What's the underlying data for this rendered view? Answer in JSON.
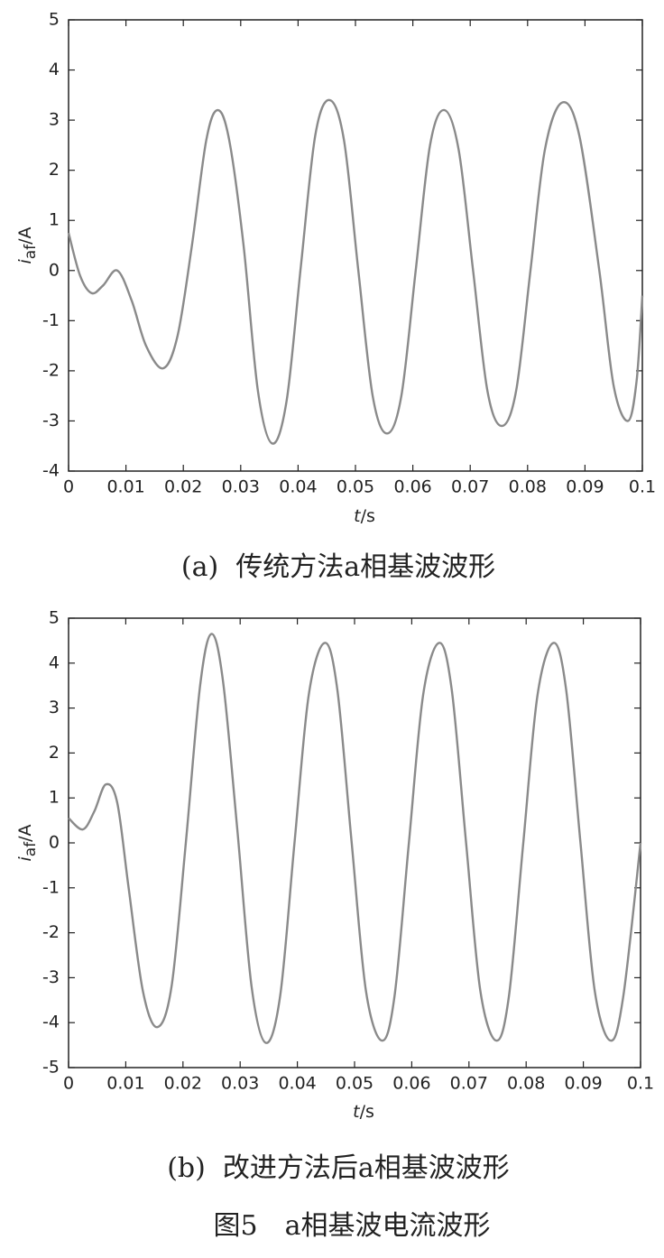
{
  "chart_data": [
    {
      "type": "line",
      "caption": "(a)  传统方法a相基波波形",
      "ylabel": [
        "i",
        "af",
        "/A"
      ],
      "xlabel": [
        "t",
        "/s"
      ],
      "xlim": [
        0,
        0.1
      ],
      "xticks": [
        0,
        0.01,
        0.02,
        0.03,
        0.04,
        0.05,
        0.06,
        0.07,
        0.08,
        0.09,
        0.1
      ],
      "ylim": [
        -4,
        5
      ],
      "yticks": [
        -4,
        -3,
        -2,
        -1,
        0,
        1,
        2,
        3,
        4,
        5
      ],
      "color": "#8a8a8a",
      "x": [
        0,
        0.002,
        0.004,
        0.006,
        0.0085,
        0.011,
        0.0135,
        0.0165,
        0.019,
        0.0215,
        0.024,
        0.026,
        0.028,
        0.0305,
        0.033,
        0.0355,
        0.038,
        0.0405,
        0.043,
        0.0455,
        0.048,
        0.0505,
        0.053,
        0.0555,
        0.058,
        0.0605,
        0.063,
        0.0655,
        0.068,
        0.0705,
        0.073,
        0.0755,
        0.078,
        0.0805,
        0.083,
        0.086,
        0.089,
        0.0925,
        0.095,
        0.0975,
        0.099,
        0.1
      ],
      "values": [
        0.75,
        -0.1,
        -0.45,
        -0.3,
        0.0,
        -0.6,
        -1.5,
        -1.95,
        -1.3,
        0.5,
        2.6,
        3.2,
        2.6,
        0.5,
        -2.4,
        -3.45,
        -2.6,
        0.1,
        2.7,
        3.4,
        2.6,
        0,
        -2.5,
        -3.25,
        -2.5,
        0,
        2.5,
        3.2,
        2.4,
        0,
        -2.4,
        -3.1,
        -2.4,
        0,
        2.4,
        3.35,
        2.7,
        0,
        -2.3,
        -3.0,
        -2.2,
        -0.5
      ]
    },
    {
      "type": "line",
      "caption": "(b)  改进方法后a相基波波形",
      "ylabel": [
        "i",
        "af",
        "/A"
      ],
      "xlabel": [
        "t",
        "/s"
      ],
      "xlim": [
        0,
        0.1
      ],
      "xticks": [
        0,
        0.01,
        0.02,
        0.03,
        0.04,
        0.05,
        0.06,
        0.07,
        0.08,
        0.09,
        0.1
      ],
      "ylim": [
        -5,
        5
      ],
      "yticks": [
        -5,
        -4,
        -3,
        -2,
        -1,
        0,
        1,
        2,
        3,
        4,
        5
      ],
      "color": "#8a8a8a",
      "x": [
        0,
        0.0025,
        0.0045,
        0.0065,
        0.0085,
        0.0105,
        0.013,
        0.0155,
        0.018,
        0.0205,
        0.023,
        0.025,
        0.027,
        0.0295,
        0.032,
        0.0345,
        0.037,
        0.0395,
        0.042,
        0.0448,
        0.047,
        0.0495,
        0.052,
        0.0548,
        0.057,
        0.0595,
        0.062,
        0.0648,
        0.067,
        0.0695,
        0.072,
        0.0748,
        0.077,
        0.0795,
        0.082,
        0.0848,
        0.087,
        0.0895,
        0.092,
        0.0948,
        0.097,
        0.1
      ],
      "values": [
        0.55,
        0.3,
        0.7,
        1.3,
        0.9,
        -1.0,
        -3.3,
        -4.1,
        -3.2,
        0,
        3.5,
        4.65,
        3.6,
        0.3,
        -3.2,
        -4.45,
        -3.4,
        0,
        3.3,
        4.45,
        3.4,
        0,
        -3.3,
        -4.4,
        -3.4,
        0,
        3.3,
        4.45,
        3.4,
        0,
        -3.3,
        -4.4,
        -3.4,
        0,
        3.3,
        4.45,
        3.4,
        0,
        -3.3,
        -4.4,
        -3.4,
        0
      ]
    }
  ],
  "figure_caption": "图5　a相基波电流波形"
}
